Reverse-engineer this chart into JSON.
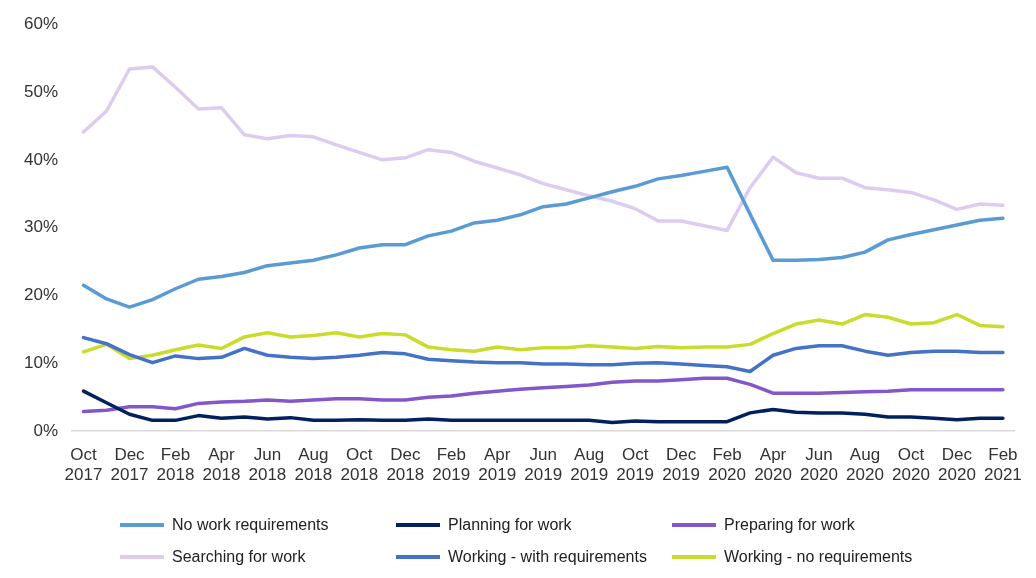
{
  "chart_data": {
    "type": "line",
    "categories": [
      "Oct 2017",
      null,
      "Dec 2017",
      null,
      "Feb 2018",
      null,
      "Apr 2018",
      null,
      "Jun 2018",
      null,
      "Aug 2018",
      null,
      "Oct 2018",
      null,
      "Dec 2018",
      null,
      "Feb 2019",
      null,
      "Apr 2019",
      null,
      "Jun 2019",
      null,
      "Aug 2019",
      null,
      "Oct 2019",
      null,
      "Dec 2019",
      null,
      "Feb 2020",
      null,
      "Apr 2020",
      null,
      "Jun 2020",
      null,
      "Aug 2020",
      null,
      "Oct 2020",
      null,
      "Dec 2020",
      null,
      "Feb 2021"
    ],
    "ylim": [
      0,
      60
    ],
    "yticks": [
      {
        "value": 0,
        "label": "0%"
      },
      {
        "value": 10,
        "label": "10%"
      },
      {
        "value": 20,
        "label": "20%"
      },
      {
        "value": 30,
        "label": "30%"
      },
      {
        "value": 40,
        "label": "40%"
      },
      {
        "value": 50,
        "label": "50%"
      },
      {
        "value": 60,
        "label": "60%"
      }
    ],
    "grid": false,
    "legend": "bottom",
    "marker": "none",
    "line_style": "solid",
    "series": [
      {
        "name": "No work requirements",
        "color": "#5b9bd5",
        "values": [
          21.5,
          19.5,
          18.3,
          19.4,
          21,
          22.4,
          22.8,
          23.4,
          24.4,
          24.8,
          25.2,
          26,
          27,
          27.5,
          27.5,
          28.8,
          29.5,
          30.7,
          31.1,
          31.9,
          33.1,
          33.5,
          34.4,
          35.3,
          36.1,
          37.2,
          37.7,
          38.3,
          38.9,
          32,
          25.2,
          25.2,
          25.3,
          25.6,
          26.4,
          28.2,
          29,
          29.7,
          30.4,
          31.1,
          31.4
        ]
      },
      {
        "name": "Planning for work",
        "color": "#002060",
        "values": [
          5.9,
          4.2,
          2.5,
          1.6,
          1.6,
          2.3,
          1.9,
          2.1,
          1.8,
          2,
          1.6,
          1.6,
          1.7,
          1.6,
          1.6,
          1.8,
          1.6,
          1.6,
          1.6,
          1.6,
          1.6,
          1.6,
          1.6,
          1.3,
          1.5,
          1.4,
          1.4,
          1.4,
          1.4,
          2.7,
          3.2,
          2.8,
          2.7,
          2.7,
          2.5,
          2.1,
          2.1,
          1.9,
          1.7,
          1.9,
          1.9
        ]
      },
      {
        "name": "Preparing for work",
        "color": "#8257c9",
        "values": [
          2.9,
          3.1,
          3.6,
          3.6,
          3.3,
          4.1,
          4.3,
          4.4,
          4.6,
          4.4,
          4.6,
          4.8,
          4.8,
          4.6,
          4.6,
          5,
          5.2,
          5.6,
          5.9,
          6.2,
          6.4,
          6.6,
          6.8,
          7.2,
          7.4,
          7.4,
          7.6,
          7.8,
          7.8,
          6.9,
          5.6,
          5.6,
          5.6,
          5.7,
          5.8,
          5.9,
          6.1,
          6.1,
          6.1,
          6.1,
          6.1
        ]
      },
      {
        "name": "Searching for work",
        "color": "#dccdf0",
        "values": [
          44.1,
          47.2,
          53.4,
          53.7,
          50.7,
          47.5,
          47.7,
          43.7,
          43.1,
          43.6,
          43.4,
          42.2,
          41.1,
          40,
          40.3,
          41.5,
          41.1,
          39.8,
          38.8,
          37.8,
          36.5,
          35.6,
          34.7,
          33.9,
          32.8,
          31,
          31,
          30.3,
          29.6,
          35.9,
          40.4,
          38.1,
          37.3,
          37.3,
          35.9,
          35.6,
          35.2,
          34.1,
          32.7,
          33.5,
          33.3
        ]
      },
      {
        "name": "Working - with requirements",
        "color": "#4472c4",
        "values": [
          13.8,
          12.9,
          11.3,
          10.1,
          11.1,
          10.7,
          10.9,
          12.2,
          11.2,
          10.9,
          10.7,
          10.9,
          11.2,
          11.6,
          11.4,
          10.6,
          10.4,
          10.2,
          10.1,
          10.1,
          9.9,
          9.9,
          9.8,
          9.8,
          10,
          10.1,
          9.9,
          9.7,
          9.5,
          8.8,
          11.2,
          12.2,
          12.6,
          12.6,
          11.8,
          11.2,
          11.6,
          11.8,
          11.8,
          11.6,
          11.6
        ]
      },
      {
        "name": "Working - no requirements",
        "color": "#c9dc2b",
        "values": [
          11.7,
          12.8,
          10.7,
          11.2,
          12,
          12.7,
          12.2,
          13.9,
          14.5,
          13.9,
          14.1,
          14.5,
          13.9,
          14.4,
          14.2,
          12.4,
          12,
          11.8,
          12.4,
          12,
          12.3,
          12.3,
          12.6,
          12.4,
          12.2,
          12.5,
          12.3,
          12.4,
          12.4,
          12.8,
          14.4,
          15.8,
          16.4,
          15.8,
          17.2,
          16.8,
          15.8,
          16,
          17.2,
          15.6,
          15.4
        ]
      }
    ]
  }
}
